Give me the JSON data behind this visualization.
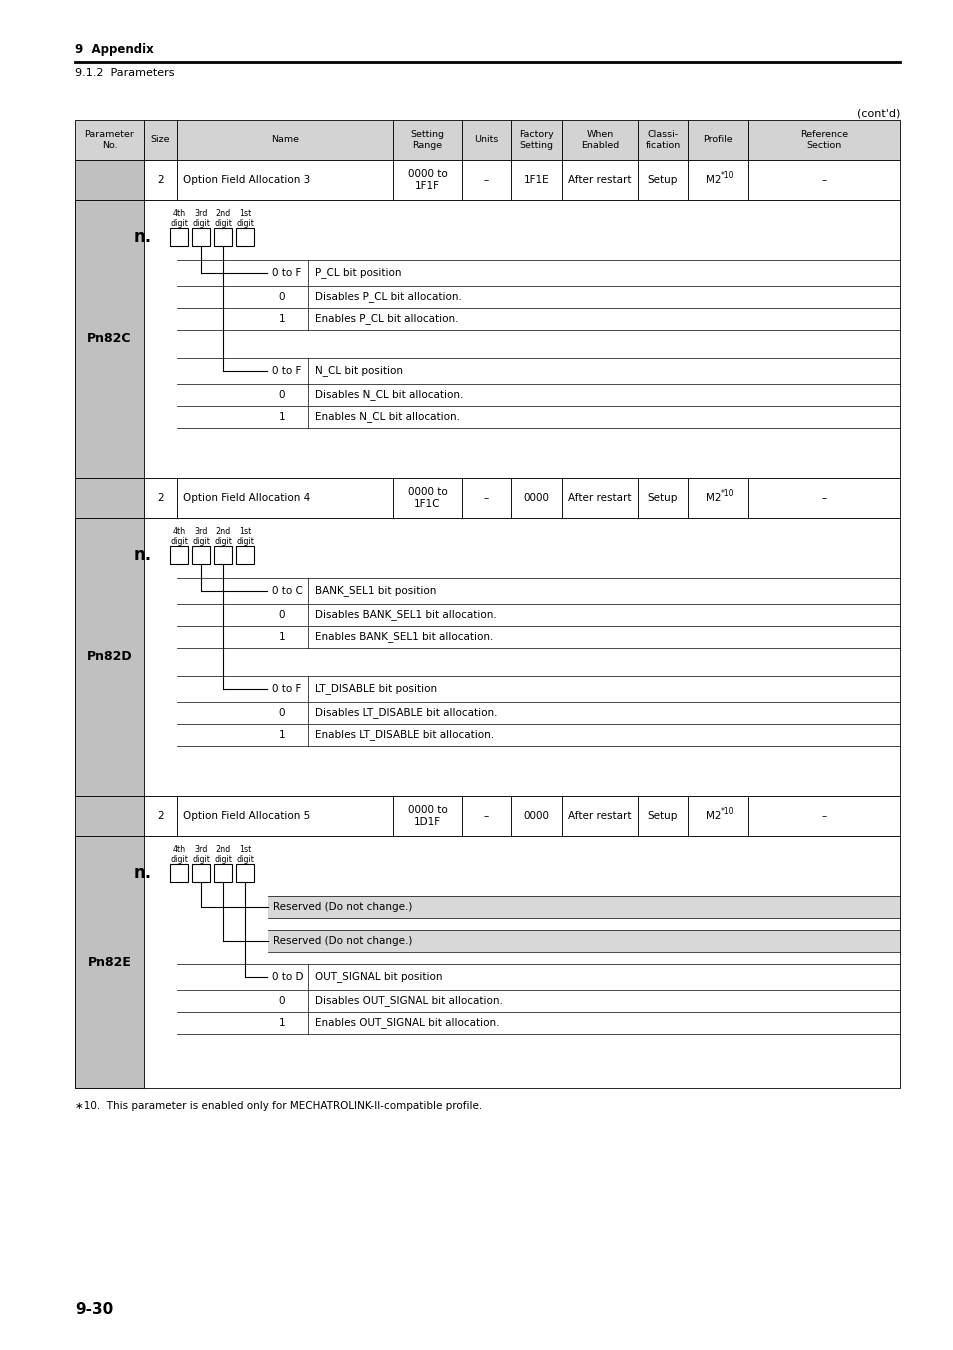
{
  "page_header_chapter": "9  Appendix",
  "page_header_section": "9.1.2  Parameters",
  "cont_label": "(cont'd)",
  "col_headers": [
    "Parameter\nNo.",
    "Size",
    "Name",
    "Setting\nRange",
    "Units",
    "Factory\nSetting",
    "When\nEnabled",
    "Classi-\nfication",
    "Profile",
    "Reference\nSection"
  ],
  "header_bg": "#d3d3d3",
  "param_label_bg": "#c0c0c0",
  "reserved_bg": "#d8d8d8",
  "footnote": "∗10.  This parameter is enabled only for MECHATROLINK-II-compatible profile.",
  "page_number": "9-30",
  "sections": [
    {
      "param_no": "Pn82C",
      "size": "2",
      "name": "Option Field Allocation 3",
      "setting_range": "0000 to\n1F1F",
      "units": "–",
      "factory_setting": "1F1E",
      "when_enabled": "After restart",
      "classification": "Setup",
      "profile": "M2",
      "profile_super": "*10",
      "ref_section": "–",
      "branches": [
        {
          "indent": 3,
          "label": "0 to F",
          "text": "P_CL bit position",
          "reserved": false,
          "sub": [
            {
              "val": "0",
              "text": "Disables P_CL bit allocation."
            },
            {
              "val": "1",
              "text": "Enables P_CL bit allocation."
            }
          ]
        },
        {
          "indent": 2,
          "label": "0 to F",
          "text": "N_CL bit position",
          "reserved": false,
          "sub": [
            {
              "val": "0",
              "text": "Disables N_CL bit allocation."
            },
            {
              "val": "1",
              "text": "Enables N_CL bit allocation."
            }
          ]
        }
      ]
    },
    {
      "param_no": "Pn82D",
      "size": "2",
      "name": "Option Field Allocation 4",
      "setting_range": "0000 to\n1F1C",
      "units": "–",
      "factory_setting": "0000",
      "when_enabled": "After restart",
      "classification": "Setup",
      "profile": "M2",
      "profile_super": "*10",
      "ref_section": "–",
      "branches": [
        {
          "indent": 3,
          "label": "0 to C",
          "text": "BANK_SEL1 bit position",
          "reserved": false,
          "sub": [
            {
              "val": "0",
              "text": "Disables BANK_SEL1 bit allocation."
            },
            {
              "val": "1",
              "text": "Enables BANK_SEL1 bit allocation."
            }
          ]
        },
        {
          "indent": 2,
          "label": "0 to F",
          "text": "LT_DISABLE bit position",
          "reserved": false,
          "sub": [
            {
              "val": "0",
              "text": "Disables LT_DISABLE bit allocation."
            },
            {
              "val": "1",
              "text": "Enables LT_DISABLE bit allocation."
            }
          ]
        }
      ]
    },
    {
      "param_no": "Pn82E",
      "size": "2",
      "name": "Option Field Allocation 5",
      "setting_range": "0000 to\n1D1F",
      "units": "–",
      "factory_setting": "0000",
      "when_enabled": "After restart",
      "classification": "Setup",
      "profile": "M2",
      "profile_super": "*10",
      "ref_section": "–",
      "branches": [
        {
          "indent": 3,
          "label": null,
          "text": "Reserved (Do not change.)",
          "reserved": true,
          "sub": []
        },
        {
          "indent": 2,
          "label": null,
          "text": "Reserved (Do not change.)",
          "reserved": true,
          "sub": []
        },
        {
          "indent": 1,
          "label": "0 to D",
          "text": "OUT_SIGNAL bit position",
          "reserved": false,
          "sub": [
            {
              "val": "0",
              "text": "Disables OUT_SIGNAL bit allocation."
            },
            {
              "val": "1",
              "text": "Enables OUT_SIGNAL bit allocation."
            }
          ]
        }
      ]
    }
  ]
}
